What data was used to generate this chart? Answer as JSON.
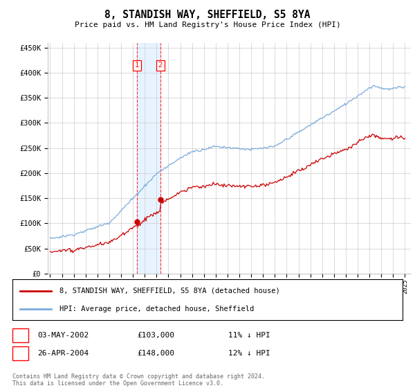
{
  "title": "8, STANDISH WAY, SHEFFIELD, S5 8YA",
  "subtitle": "Price paid vs. HM Land Registry's House Price Index (HPI)",
  "legend_line1": "8, STANDISH WAY, SHEFFIELD, S5 8YA (detached house)",
  "legend_line2": "HPI: Average price, detached house, Sheffield",
  "transaction1_date": "03-MAY-2002",
  "transaction1_price": "£103,000",
  "transaction1_hpi": "11% ↓ HPI",
  "transaction1_year": 2002.35,
  "transaction1_value": 103000,
  "transaction2_date": "26-APR-2004",
  "transaction2_price": "£148,000",
  "transaction2_hpi": "12% ↓ HPI",
  "transaction2_year": 2004.32,
  "transaction2_value": 148000,
  "hpi_color": "#7aabdb",
  "price_color": "#cc0000",
  "ylim": [
    0,
    460000
  ],
  "yticks": [
    0,
    50000,
    100000,
    150000,
    200000,
    250000,
    300000,
    350000,
    400000,
    450000
  ],
  "footer": "Contains HM Land Registry data © Crown copyright and database right 2024.\nThis data is licensed under the Open Government Licence v3.0.",
  "background_color": "#ffffff",
  "shade_color": "#ddeeff"
}
